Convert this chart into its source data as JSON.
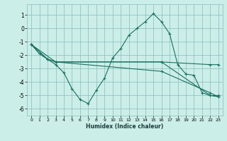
{
  "xlabel": "Humidex (Indice chaleur)",
  "ylabel": "",
  "xlim": [
    -0.5,
    23.5
  ],
  "ylim": [
    -6.5,
    1.8
  ],
  "xticks": [
    0,
    1,
    2,
    3,
    4,
    5,
    6,
    7,
    8,
    9,
    10,
    11,
    12,
    13,
    14,
    15,
    16,
    17,
    18,
    19,
    20,
    21,
    22,
    23
  ],
  "yticks": [
    1,
    0,
    -1,
    -2,
    -3,
    -4,
    -5,
    -6
  ],
  "bg_color": "#cceee8",
  "grid_color": "#88bbbb",
  "line_color": "#1a7060",
  "line1_x": [
    0,
    1,
    2,
    3,
    4,
    5,
    6,
    7,
    8,
    9,
    10,
    11,
    12,
    13,
    14,
    15,
    16,
    17,
    18,
    19,
    20,
    21,
    22,
    23
  ],
  "line1_y": [
    -1.2,
    -1.9,
    -2.3,
    -2.7,
    -3.3,
    -4.5,
    -5.3,
    -5.6,
    -4.6,
    -3.7,
    -2.2,
    -1.5,
    -0.5,
    0.0,
    0.5,
    1.1,
    0.5,
    -0.4,
    -2.7,
    -3.4,
    -3.5,
    -4.8,
    -5.0,
    -5.0
  ],
  "line2_x": [
    0,
    2,
    3,
    16,
    22,
    23
  ],
  "line2_y": [
    -1.2,
    -2.3,
    -2.5,
    -2.5,
    -5.0,
    -5.1
  ],
  "line3_x": [
    0,
    2,
    3,
    16,
    22,
    23
  ],
  "line3_y": [
    -1.2,
    -2.3,
    -2.5,
    -2.5,
    -2.7,
    -2.7
  ],
  "line4_x": [
    0,
    3,
    16,
    22,
    23
  ],
  "line4_y": [
    -1.2,
    -2.5,
    -3.2,
    -4.8,
    -5.1
  ]
}
